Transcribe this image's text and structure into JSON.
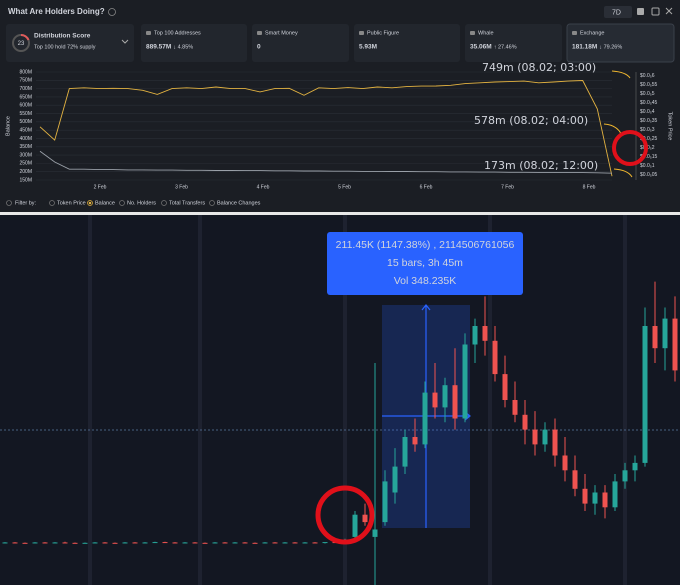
{
  "header": {
    "title": "What Are Holders Doing?",
    "timeframe": "7D"
  },
  "cards": [
    {
      "label": "Distribution Score",
      "value": "23",
      "sub": "Top 100 hold 72% supply"
    },
    {
      "label": "Top 100 Addresses",
      "value": "889.57M",
      "change": "↓ 4.85%",
      "direction": "down"
    },
    {
      "label": "Smart Money",
      "value": "0"
    },
    {
      "label": "Public Figure",
      "value": "5.93M"
    },
    {
      "label": "Whale",
      "value": "35.06M",
      "change": "↑ 27.46%",
      "direction": "up"
    },
    {
      "label": "Exchange",
      "value": "181.18M",
      "change": "↓ 79.26%",
      "direction": "down"
    }
  ],
  "balance_chart": {
    "type": "line",
    "y_label": "Balance",
    "y2_label": "Token Price",
    "ylim": [
      150,
      800
    ],
    "yticks": [
      {
        "value": 800,
        "label": "800M"
      },
      {
        "value": 750,
        "label": "750M"
      },
      {
        "value": 700,
        "label": "700M"
      },
      {
        "value": 650,
        "label": "650M"
      },
      {
        "value": 600,
        "label": "600M"
      },
      {
        "value": 550,
        "label": "550M"
      },
      {
        "value": 500,
        "label": "500M"
      },
      {
        "value": 450,
        "label": "450M"
      },
      {
        "value": 400,
        "label": "400M"
      },
      {
        "value": 350,
        "label": "350M"
      },
      {
        "value": 300,
        "label": "300M"
      },
      {
        "value": 250,
        "label": "250M"
      },
      {
        "value": 200,
        "label": "200M"
      },
      {
        "value": 150,
        "label": "150M"
      }
    ],
    "y2lim": [
      2e-07,
      6.2e-06
    ],
    "y2ticks": [
      {
        "value": 6e-06,
        "label": "$0.0₅6"
      },
      {
        "value": 5.5e-06,
        "label": "$0.0₅55"
      },
      {
        "value": 5e-06,
        "label": "$0.0₅5"
      },
      {
        "value": 4.5e-06,
        "label": "$0.0₅45"
      },
      {
        "value": 4e-06,
        "label": "$0.0₅4"
      },
      {
        "value": 3.5e-06,
        "label": "$0.0₅35"
      },
      {
        "value": 3e-06,
        "label": "$0.0₅3"
      },
      {
        "value": 2.5e-06,
        "label": "$0.0₅25"
      },
      {
        "value": 2e-06,
        "label": "$0.0₅2"
      },
      {
        "value": 1.5e-06,
        "label": "$0.0₅15"
      },
      {
        "value": 1e-06,
        "label": "$0.0₅1"
      },
      {
        "value": 5e-07,
        "label": "$0.0₅05"
      }
    ],
    "x_labels": [
      "2 Feb",
      "3 Feb",
      "4 Feb",
      "5 Feb",
      "6 Feb",
      "7 Feb",
      "8 Feb"
    ],
    "series": [
      {
        "name": "Balance",
        "color": "#e3b341",
        "values": [
          470,
          390,
          700,
          705,
          700,
          702,
          700,
          690,
          665,
          700,
          705,
          700,
          710,
          700,
          700,
          680,
          700,
          702,
          660,
          705,
          700,
          706,
          700,
          710,
          705,
          712,
          715,
          716,
          720,
          730,
          735,
          740,
          742,
          745,
          735,
          740,
          745,
          749,
          578,
          173
        ]
      },
      {
        "name": "Token Price",
        "color": "#9aa0a8",
        "axis": "y2",
        "values": [
          1.8e-06,
          1.2e-06,
          8e-07,
          8e-07,
          7.8e-07,
          7.8e-07,
          7.6e-07,
          7.6e-07,
          7.5e-07,
          7.5e-07,
          7.4e-07,
          7.4e-07,
          7.3e-07,
          7.3e-07,
          7.2e-07,
          7.2e-07,
          7.1e-07,
          7.1e-07,
          7e-07,
          7e-07,
          6.9e-07,
          6.9e-07,
          6.8e-07,
          6.8e-07,
          6.7e-07,
          6.7e-07,
          6.6e-07,
          6.6e-07,
          6.5e-07,
          6.5e-07,
          6.4e-07,
          6.4e-07,
          6.3e-07,
          6.3e-07,
          6.2e-07,
          6.2e-07,
          6.1e-07,
          6.1e-07,
          6e-07,
          5.8e-07
        ]
      }
    ],
    "annotations": [
      "749m (08.02; 03:00)",
      "578m (08.02; 04:00)",
      "173m (08.02; 12:00)"
    ]
  },
  "filters": {
    "label": "Filter by:",
    "options": [
      "Token Price",
      "Balance",
      "No. Holders",
      "Total Transfers",
      "Balance Changes"
    ],
    "selected_index": 1
  },
  "candle_chart": {
    "type": "candlestick",
    "ylim": [
      0,
      100
    ],
    "candles": [
      [
        11.4,
        11.6,
        11.2,
        11.5
      ],
      [
        11.5,
        11.6,
        11.3,
        11.4
      ],
      [
        11.4,
        11.5,
        11.2,
        11.3
      ],
      [
        11.3,
        11.6,
        11.2,
        11.5
      ],
      [
        11.5,
        11.6,
        11.3,
        11.4
      ],
      [
        11.4,
        11.6,
        11.3,
        11.5
      ],
      [
        11.5,
        11.7,
        11.4,
        11.4
      ],
      [
        11.4,
        11.5,
        11.2,
        11.3
      ],
      [
        11.3,
        11.5,
        11.2,
        11.4
      ],
      [
        11.4,
        11.6,
        11.3,
        11.5
      ],
      [
        11.5,
        11.6,
        11.3,
        11.4
      ],
      [
        11.4,
        11.5,
        11.2,
        11.3
      ],
      [
        11.3,
        11.6,
        11.2,
        11.5
      ],
      [
        11.5,
        11.6,
        11.4,
        11.4
      ],
      [
        11.4,
        11.6,
        11.3,
        11.5
      ],
      [
        11.5,
        11.7,
        11.4,
        11.6
      ],
      [
        11.6,
        11.7,
        11.4,
        11.5
      ],
      [
        11.5,
        11.6,
        11.3,
        11.4
      ],
      [
        11.4,
        11.6,
        11.3,
        11.5
      ],
      [
        11.5,
        11.6,
        11.3,
        11.4
      ],
      [
        11.4,
        11.5,
        11.2,
        11.3
      ],
      [
        11.3,
        11.6,
        11.2,
        11.5
      ],
      [
        11.5,
        11.6,
        11.4,
        11.4
      ],
      [
        11.4,
        11.6,
        11.3,
        11.5
      ],
      [
        11.5,
        11.6,
        11.3,
        11.4
      ],
      [
        11.4,
        11.5,
        11.2,
        11.3
      ],
      [
        11.3,
        11.6,
        11.2,
        11.5
      ],
      [
        11.5,
        11.6,
        11.4,
        11.4
      ],
      [
        11.4,
        11.6,
        11.3,
        11.5
      ],
      [
        11.5,
        11.6,
        11.3,
        11.4
      ],
      [
        11.4,
        11.6,
        11.3,
        11.5
      ],
      [
        11.5,
        11.6,
        11.4,
        11.4
      ],
      [
        11.4,
        11.5,
        11.2,
        11.6
      ],
      [
        11.6,
        11.8,
        11.4,
        11.5
      ],
      [
        11.5,
        12.5,
        11,
        12
      ],
      [
        13,
        20,
        12,
        19
      ],
      [
        19,
        22,
        16,
        17
      ],
      [
        13,
        60,
        0,
        15
      ],
      [
        17,
        31,
        16,
        28
      ],
      [
        25,
        37,
        22,
        32
      ],
      [
        32,
        42,
        30,
        40
      ],
      [
        40,
        45,
        36,
        38
      ],
      [
        38,
        55,
        37,
        52
      ],
      [
        52,
        60,
        45,
        48
      ],
      [
        48,
        56,
        44,
        54
      ],
      [
        54,
        64,
        42,
        45
      ],
      [
        45,
        68,
        44,
        65
      ],
      [
        65,
        72,
        60,
        70
      ],
      [
        70,
        78,
        62,
        66
      ],
      [
        66,
        70,
        55,
        57
      ],
      [
        57,
        62,
        48,
        50
      ],
      [
        50,
        55,
        44,
        46
      ],
      [
        46,
        50,
        38,
        42
      ],
      [
        42,
        47,
        35,
        38
      ],
      [
        38,
        44,
        36,
        42
      ],
      [
        42,
        45,
        32,
        35
      ],
      [
        35,
        40,
        28,
        31
      ],
      [
        31,
        35,
        24,
        26
      ],
      [
        26,
        30,
        20,
        22
      ],
      [
        22,
        27,
        19,
        25
      ],
      [
        25,
        27,
        18,
        21
      ],
      [
        21,
        30,
        20,
        28
      ],
      [
        28,
        33,
        26,
        31
      ],
      [
        31,
        35,
        28,
        33
      ],
      [
        33,
        75,
        32,
        70
      ],
      [
        70,
        82,
        60,
        64
      ],
      [
        64,
        75,
        58,
        72
      ],
      [
        72,
        78,
        55,
        58
      ],
      [
        58,
        65,
        50,
        55
      ]
    ],
    "tooltip": [
      "211.45K (1147.38%) , 2114506761056",
      "15 bars, 3h 45m",
      "Vol 348.235K"
    ]
  }
}
